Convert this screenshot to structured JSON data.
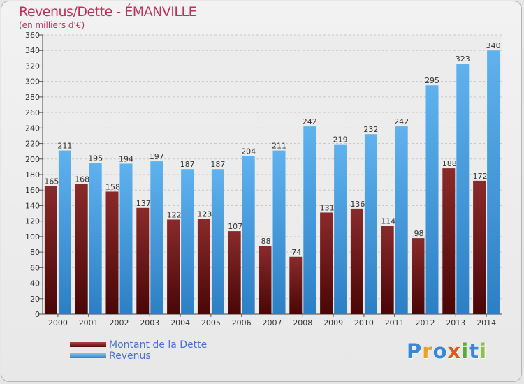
{
  "title": "Revenus/Dette - ÉMANVILLE",
  "subtitle": "(en milliers d'€)",
  "logo": {
    "letters": [
      "P",
      "r",
      "o",
      "x",
      "i",
      "t",
      "i"
    ],
    "colors": [
      "#3a87d6",
      "#e8a227",
      "#3a87d6",
      "#e05a1a",
      "#5aaa3a",
      "#3a87d6",
      "#8bc34a"
    ]
  },
  "colors": {
    "dette": "#7a1c1c",
    "revenus": "#4aa3e6",
    "title": "#c0305a",
    "legend_text": "#4a6fe0"
  },
  "chart_data": {
    "type": "bar",
    "categories": [
      "2000",
      "2001",
      "2002",
      "2003",
      "2004",
      "2005",
      "2006",
      "2007",
      "2008",
      "2009",
      "2010",
      "2011",
      "2012",
      "2013",
      "2014"
    ],
    "series": [
      {
        "name": "Montant de la Dette",
        "values": [
          165,
          168,
          158,
          137,
          122,
          123,
          107,
          88,
          74,
          131,
          136,
          114,
          98,
          188,
          172
        ]
      },
      {
        "name": "Revenus",
        "values": [
          211,
          195,
          194,
          197,
          187,
          187,
          204,
          211,
          242,
          219,
          232,
          242,
          295,
          323,
          340
        ]
      }
    ],
    "ylim": [
      0,
      360
    ],
    "yticks": [
      0,
      20,
      40,
      60,
      80,
      100,
      120,
      140,
      160,
      180,
      200,
      220,
      240,
      260,
      280,
      300,
      320,
      340,
      360
    ],
    "grid": true
  }
}
